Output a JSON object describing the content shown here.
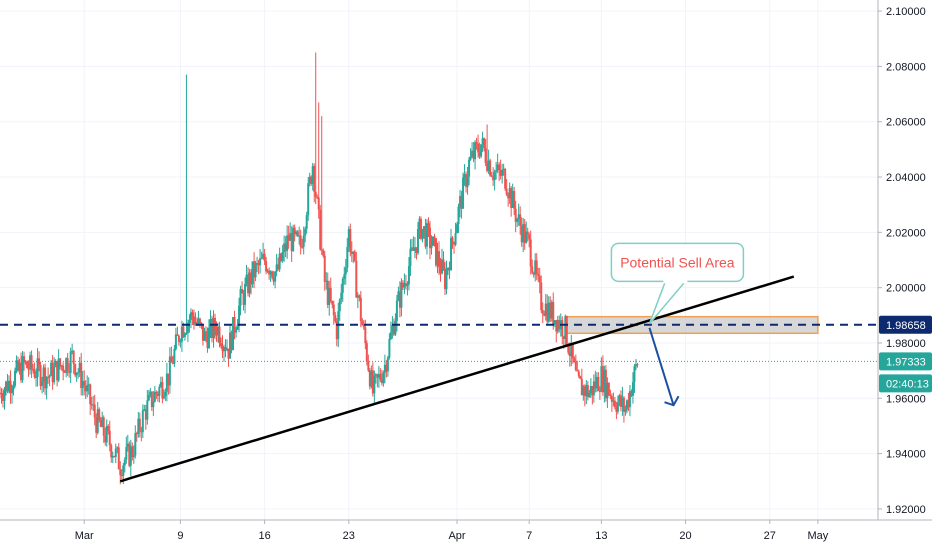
{
  "chart_data": {
    "type": "candlestick",
    "symbol_note": "",
    "y_axis": {
      "min": 1.916,
      "max": 2.104,
      "ticks": [
        "1.92000",
        "1.94000",
        "1.96000",
        "1.98000",
        "2.00000",
        "2.02000",
        "2.04000",
        "2.06000",
        "2.08000",
        "2.10000"
      ],
      "tick_values": [
        1.92,
        1.94,
        1.96,
        1.98,
        2.0,
        2.02,
        2.04,
        2.06,
        2.08,
        2.1
      ],
      "position": "right"
    },
    "x_axis": {
      "start": "2020-02-23",
      "end": "2020-05-06",
      "ticks": [
        {
          "label": "Mar",
          "date": "2020-03-01"
        },
        {
          "label": "9",
          "date": "2020-03-09"
        },
        {
          "label": "16",
          "date": "2020-03-16"
        },
        {
          "label": "23",
          "date": "2020-03-23"
        },
        {
          "label": "Apr",
          "date": "2020-04-01"
        },
        {
          "label": "7",
          "date": "2020-04-07"
        },
        {
          "label": "13",
          "date": "2020-04-13"
        },
        {
          "label": "20",
          "date": "2020-04-20"
        },
        {
          "label": "27",
          "date": "2020-04-27"
        },
        {
          "label": "May",
          "date": "2020-05-01"
        }
      ]
    },
    "grid": true,
    "colors": {
      "up": "#26a69a",
      "down": "#ef5350",
      "trendline": "#000000",
      "level": "#0d2a6e",
      "current": "#26a69a",
      "zone_fill": "#c9c9c9",
      "zone_border": "#f0a050",
      "arrow": "#1b4fa0",
      "callout_border": "#7fcfc6"
    },
    "price_levels": [
      {
        "label": "1.98658",
        "value": 1.98658,
        "style": "dashed",
        "color": "#0d2a6e"
      },
      {
        "label": "1.97333",
        "value": 1.97333,
        "style": "dotted",
        "color": "#26a69a"
      }
    ],
    "countdown_label": "02:40:13",
    "trendline": {
      "from": {
        "date": "2020-03-04",
        "value": 1.93
      },
      "to": {
        "date": "2020-04-29",
        "value": 2.004
      }
    },
    "zone": {
      "from_date": "2020-04-10",
      "to_date": "2020-05-01",
      "low": 1.9835,
      "high": 1.9895
    },
    "arrow": {
      "from": {
        "date": "2020-04-17",
        "value": 1.9855
      },
      "to": {
        "date": "2020-04-19",
        "value": 1.9575
      }
    },
    "callout": {
      "text": "Potential Sell Area",
      "anchor": {
        "date": "2020-04-14",
        "value": 2.0088
      },
      "pointer": {
        "date": "2020-04-17",
        "value": 1.987
      }
    },
    "candles_note": "",
    "path": [
      [
        "2020-02-23",
        1.962
      ],
      [
        "2020-02-25",
        1.972
      ],
      [
        "2020-02-27",
        1.968
      ],
      [
        "2020-02-29",
        1.975
      ],
      [
        "2020-03-01",
        1.965
      ],
      [
        "2020-03-02",
        1.952
      ],
      [
        "2020-03-03",
        1.945
      ],
      [
        "2020-03-04",
        1.936
      ],
      [
        "2020-03-05",
        1.941
      ],
      [
        "2020-03-06",
        1.955
      ],
      [
        "2020-03-07",
        1.962
      ],
      [
        "2020-03-08",
        1.968
      ],
      [
        "2020-03-09",
        1.985
      ],
      [
        "2020-03-10",
        1.99
      ],
      [
        "2020-03-11",
        1.982
      ],
      [
        "2020-03-12",
        1.986
      ],
      [
        "2020-03-13",
        1.978
      ],
      [
        "2020-03-14",
        1.995
      ],
      [
        "2020-03-15",
        2.005
      ],
      [
        "2020-03-16",
        2.01
      ],
      [
        "2020-03-17",
        2.005
      ],
      [
        "2020-03-18",
        2.018
      ],
      [
        "2020-03-19",
        2.015
      ],
      [
        "2020-03-20",
        2.045
      ],
      [
        "2020-03-21",
        2.002
      ],
      [
        "2020-03-22",
        1.985
      ],
      [
        "2020-03-23",
        2.02
      ],
      [
        "2020-03-24",
        1.99
      ],
      [
        "2020-03-25",
        1.962
      ],
      [
        "2020-03-26",
        1.972
      ],
      [
        "2020-03-27",
        1.993
      ],
      [
        "2020-03-28",
        2.008
      ],
      [
        "2020-03-29",
        2.022
      ],
      [
        "2020-03-30",
        2.015
      ],
      [
        "2020-03-31",
        2.003
      ],
      [
        "2020-04-01",
        2.025
      ],
      [
        "2020-04-02",
        2.045
      ],
      [
        "2020-04-03",
        2.052
      ],
      [
        "2020-04-04",
        2.042
      ],
      [
        "2020-04-05",
        2.04
      ],
      [
        "2020-04-06",
        2.025
      ],
      [
        "2020-04-07",
        2.015
      ],
      [
        "2020-04-08",
        1.995
      ],
      [
        "2020-04-09",
        1.99
      ],
      [
        "2020-04-10",
        1.985
      ],
      [
        "2020-04-11",
        1.965
      ],
      [
        "2020-04-12",
        1.962
      ],
      [
        "2020-04-13",
        1.968
      ],
      [
        "2020-04-14",
        1.96
      ],
      [
        "2020-04-15",
        1.956
      ],
      [
        "2020-04-16",
        1.973
      ]
    ]
  }
}
